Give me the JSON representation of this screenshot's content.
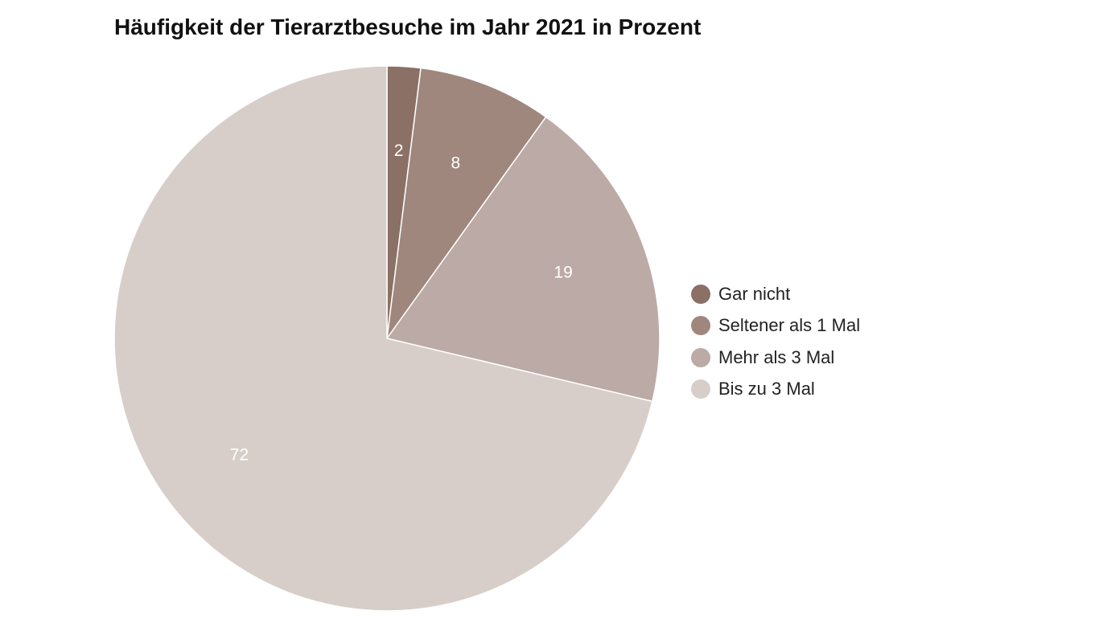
{
  "chart_data": {
    "type": "pie",
    "title": "Häufigkeit der Tierarztbesuche im Jahr 2021 in Prozent",
    "start_angle": "12 o'clock",
    "direction": "clockwise",
    "legend_position": "right",
    "slices": [
      {
        "label": "Gar nicht",
        "value": 2,
        "display": "2",
        "color": "#8b7066"
      },
      {
        "label": "Seltener als 1 Mal",
        "value": 8,
        "display": "8",
        "color": "#9f877d"
      },
      {
        "label": "Mehr als 3 Mal",
        "value": 19,
        "display": "19",
        "color": "#bbaaa5"
      },
      {
        "label": "Bis zu 3 Mal",
        "value": 72,
        "display": "72",
        "color": "#d7ceca"
      }
    ]
  }
}
